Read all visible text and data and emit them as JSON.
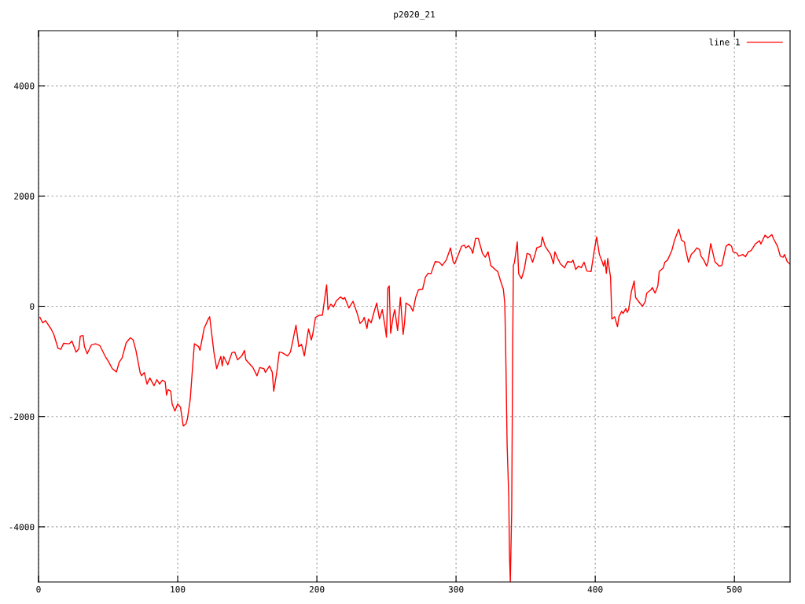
{
  "chart_data": {
    "type": "line",
    "title": "p2020_21",
    "xlim": [
      0,
      540
    ],
    "xticks": [
      0,
      100,
      200,
      300,
      400,
      500
    ],
    "ylim": [
      -5000,
      5000
    ],
    "yticks": [
      -4000,
      -2000,
      0,
      2000,
      4000
    ],
    "grid": true,
    "legend": "top right",
    "marker": "none",
    "line_style": "solid",
    "series": [
      {
        "name": "line 1",
        "color": "#ff0000",
        "x": [
          1,
          3,
          5,
          9,
          11,
          14,
          16,
          18,
          22,
          24,
          27,
          29,
          30,
          32,
          33,
          35,
          38,
          41,
          44,
          48,
          50,
          53,
          56,
          58,
          60,
          63,
          66,
          68,
          70,
          73,
          74,
          76,
          78,
          80,
          83,
          85,
          87,
          89,
          91,
          92,
          93,
          95,
          96,
          98,
          100,
          102,
          104,
          106,
          107,
          109,
          111,
          112,
          115,
          116,
          119,
          122,
          123,
          126,
          128,
          131,
          132,
          133,
          136,
          139,
          141,
          143,
          146,
          148,
          149,
          154,
          157,
          159,
          162,
          163,
          166,
          168,
          169,
          171,
          173,
          175,
          179,
          181,
          183,
          185,
          187,
          189,
          191,
          194,
          196,
          197,
          199,
          202,
          204,
          207,
          208,
          210,
          212,
          214,
          217,
          219,
          220,
          223,
          226,
          229,
          231,
          233,
          234,
          236,
          237,
          239,
          241,
          243,
          245,
          247,
          249,
          250,
          251,
          252,
          253,
          255,
          256,
          258,
          259,
          260,
          262,
          263,
          264,
          267,
          269,
          271,
          273,
          276,
          278,
          280,
          282,
          284,
          285,
          288,
          290,
          293,
          296,
          298,
          299,
          302,
          304,
          306,
          307,
          309,
          311,
          312,
          314,
          316,
          319,
          321,
          323,
          325,
          328,
          330,
          332,
          334,
          335,
          335.6,
          336.2,
          336.7,
          337.9,
          338.4,
          339,
          340,
          340.7,
          341.2,
          342,
          344,
          345,
          347,
          349,
          351,
          353,
          355,
          357,
          358,
          361,
          362,
          364,
          368,
          370,
          371,
          373,
          375,
          378,
          380,
          383,
          384,
          386,
          388,
          390,
          392,
          394,
          397,
          399,
          401,
          403,
          405,
          406,
          407,
          408,
          409,
          411,
          412,
          414,
          416,
          417,
          419,
          420,
          422,
          423,
          424,
          426,
          428,
          429,
          432,
          434,
          436,
          437,
          440,
          441,
          443,
          445,
          446,
          449,
          450,
          452,
          455,
          457,
          460,
          462,
          464,
          465,
          467,
          469,
          471,
          473,
          475,
          476,
          478,
          480,
          481,
          483,
          484,
          486,
          489,
          491,
          494,
          496,
          498,
          499,
          502,
          503,
          506,
          508,
          510,
          512,
          515,
          518,
          519,
          522,
          524,
          527,
          528,
          531,
          533,
          535,
          536,
          538,
          540
        ],
        "values": [
          -200,
          -300,
          -260,
          -410,
          -510,
          -760,
          -780,
          -670,
          -680,
          -630,
          -830,
          -770,
          -540,
          -530,
          -730,
          -860,
          -700,
          -680,
          -710,
          -910,
          -990,
          -1130,
          -1190,
          -1010,
          -940,
          -660,
          -570,
          -610,
          -800,
          -1200,
          -1260,
          -1200,
          -1410,
          -1300,
          -1440,
          -1330,
          -1410,
          -1340,
          -1370,
          -1610,
          -1510,
          -1540,
          -1770,
          -1900,
          -1770,
          -1830,
          -2170,
          -2130,
          -2040,
          -1690,
          -1000,
          -680,
          -730,
          -800,
          -400,
          -230,
          -190,
          -830,
          -1130,
          -910,
          -1080,
          -910,
          -1060,
          -840,
          -830,
          -970,
          -900,
          -800,
          -970,
          -1110,
          -1260,
          -1110,
          -1130,
          -1200,
          -1080,
          -1200,
          -1540,
          -1230,
          -830,
          -840,
          -900,
          -830,
          -590,
          -340,
          -730,
          -690,
          -900,
          -410,
          -610,
          -510,
          -200,
          -160,
          -160,
          390,
          -60,
          40,
          -10,
          100,
          170,
          130,
          160,
          -30,
          90,
          -130,
          -310,
          -260,
          -200,
          -400,
          -230,
          -300,
          -110,
          60,
          -230,
          -60,
          -370,
          -560,
          330,
          370,
          -490,
          -160,
          -60,
          -440,
          -160,
          160,
          -510,
          -300,
          60,
          10,
          -90,
          160,
          300,
          310,
          530,
          600,
          590,
          740,
          810,
          800,
          740,
          840,
          1060,
          800,
          770,
          960,
          1090,
          1110,
          1060,
          1100,
          1030,
          960,
          1230,
          1230,
          960,
          890,
          990,
          740,
          670,
          630,
          460,
          310,
          60,
          -660,
          -1660,
          -2510,
          -3470,
          -4510,
          -5000,
          -3690,
          -770,
          740,
          800,
          1170,
          590,
          500,
          670,
          960,
          940,
          800,
          960,
          1060,
          1090,
          1260,
          1090,
          940,
          770,
          990,
          870,
          770,
          700,
          810,
          800,
          840,
          670,
          730,
          700,
          800,
          640,
          630,
          960,
          1260,
          940,
          810,
          730,
          840,
          600,
          870,
          530,
          -230,
          -190,
          -370,
          -190,
          -90,
          -130,
          -40,
          -110,
          -60,
          270,
          460,
          160,
          60,
          0,
          90,
          240,
          300,
          340,
          240,
          370,
          630,
          700,
          800,
          840,
          1010,
          1200,
          1400,
          1200,
          1170,
          1030,
          800,
          940,
          990,
          1060,
          1030,
          910,
          840,
          730,
          800,
          1140,
          1030,
          810,
          730,
          740,
          1090,
          1130,
          1090,
          990,
          960,
          910,
          940,
          900,
          990,
          1010,
          1130,
          1190,
          1130,
          1290,
          1240,
          1300,
          1230,
          1090,
          910,
          890,
          940,
          810,
          770
        ]
      }
    ]
  }
}
